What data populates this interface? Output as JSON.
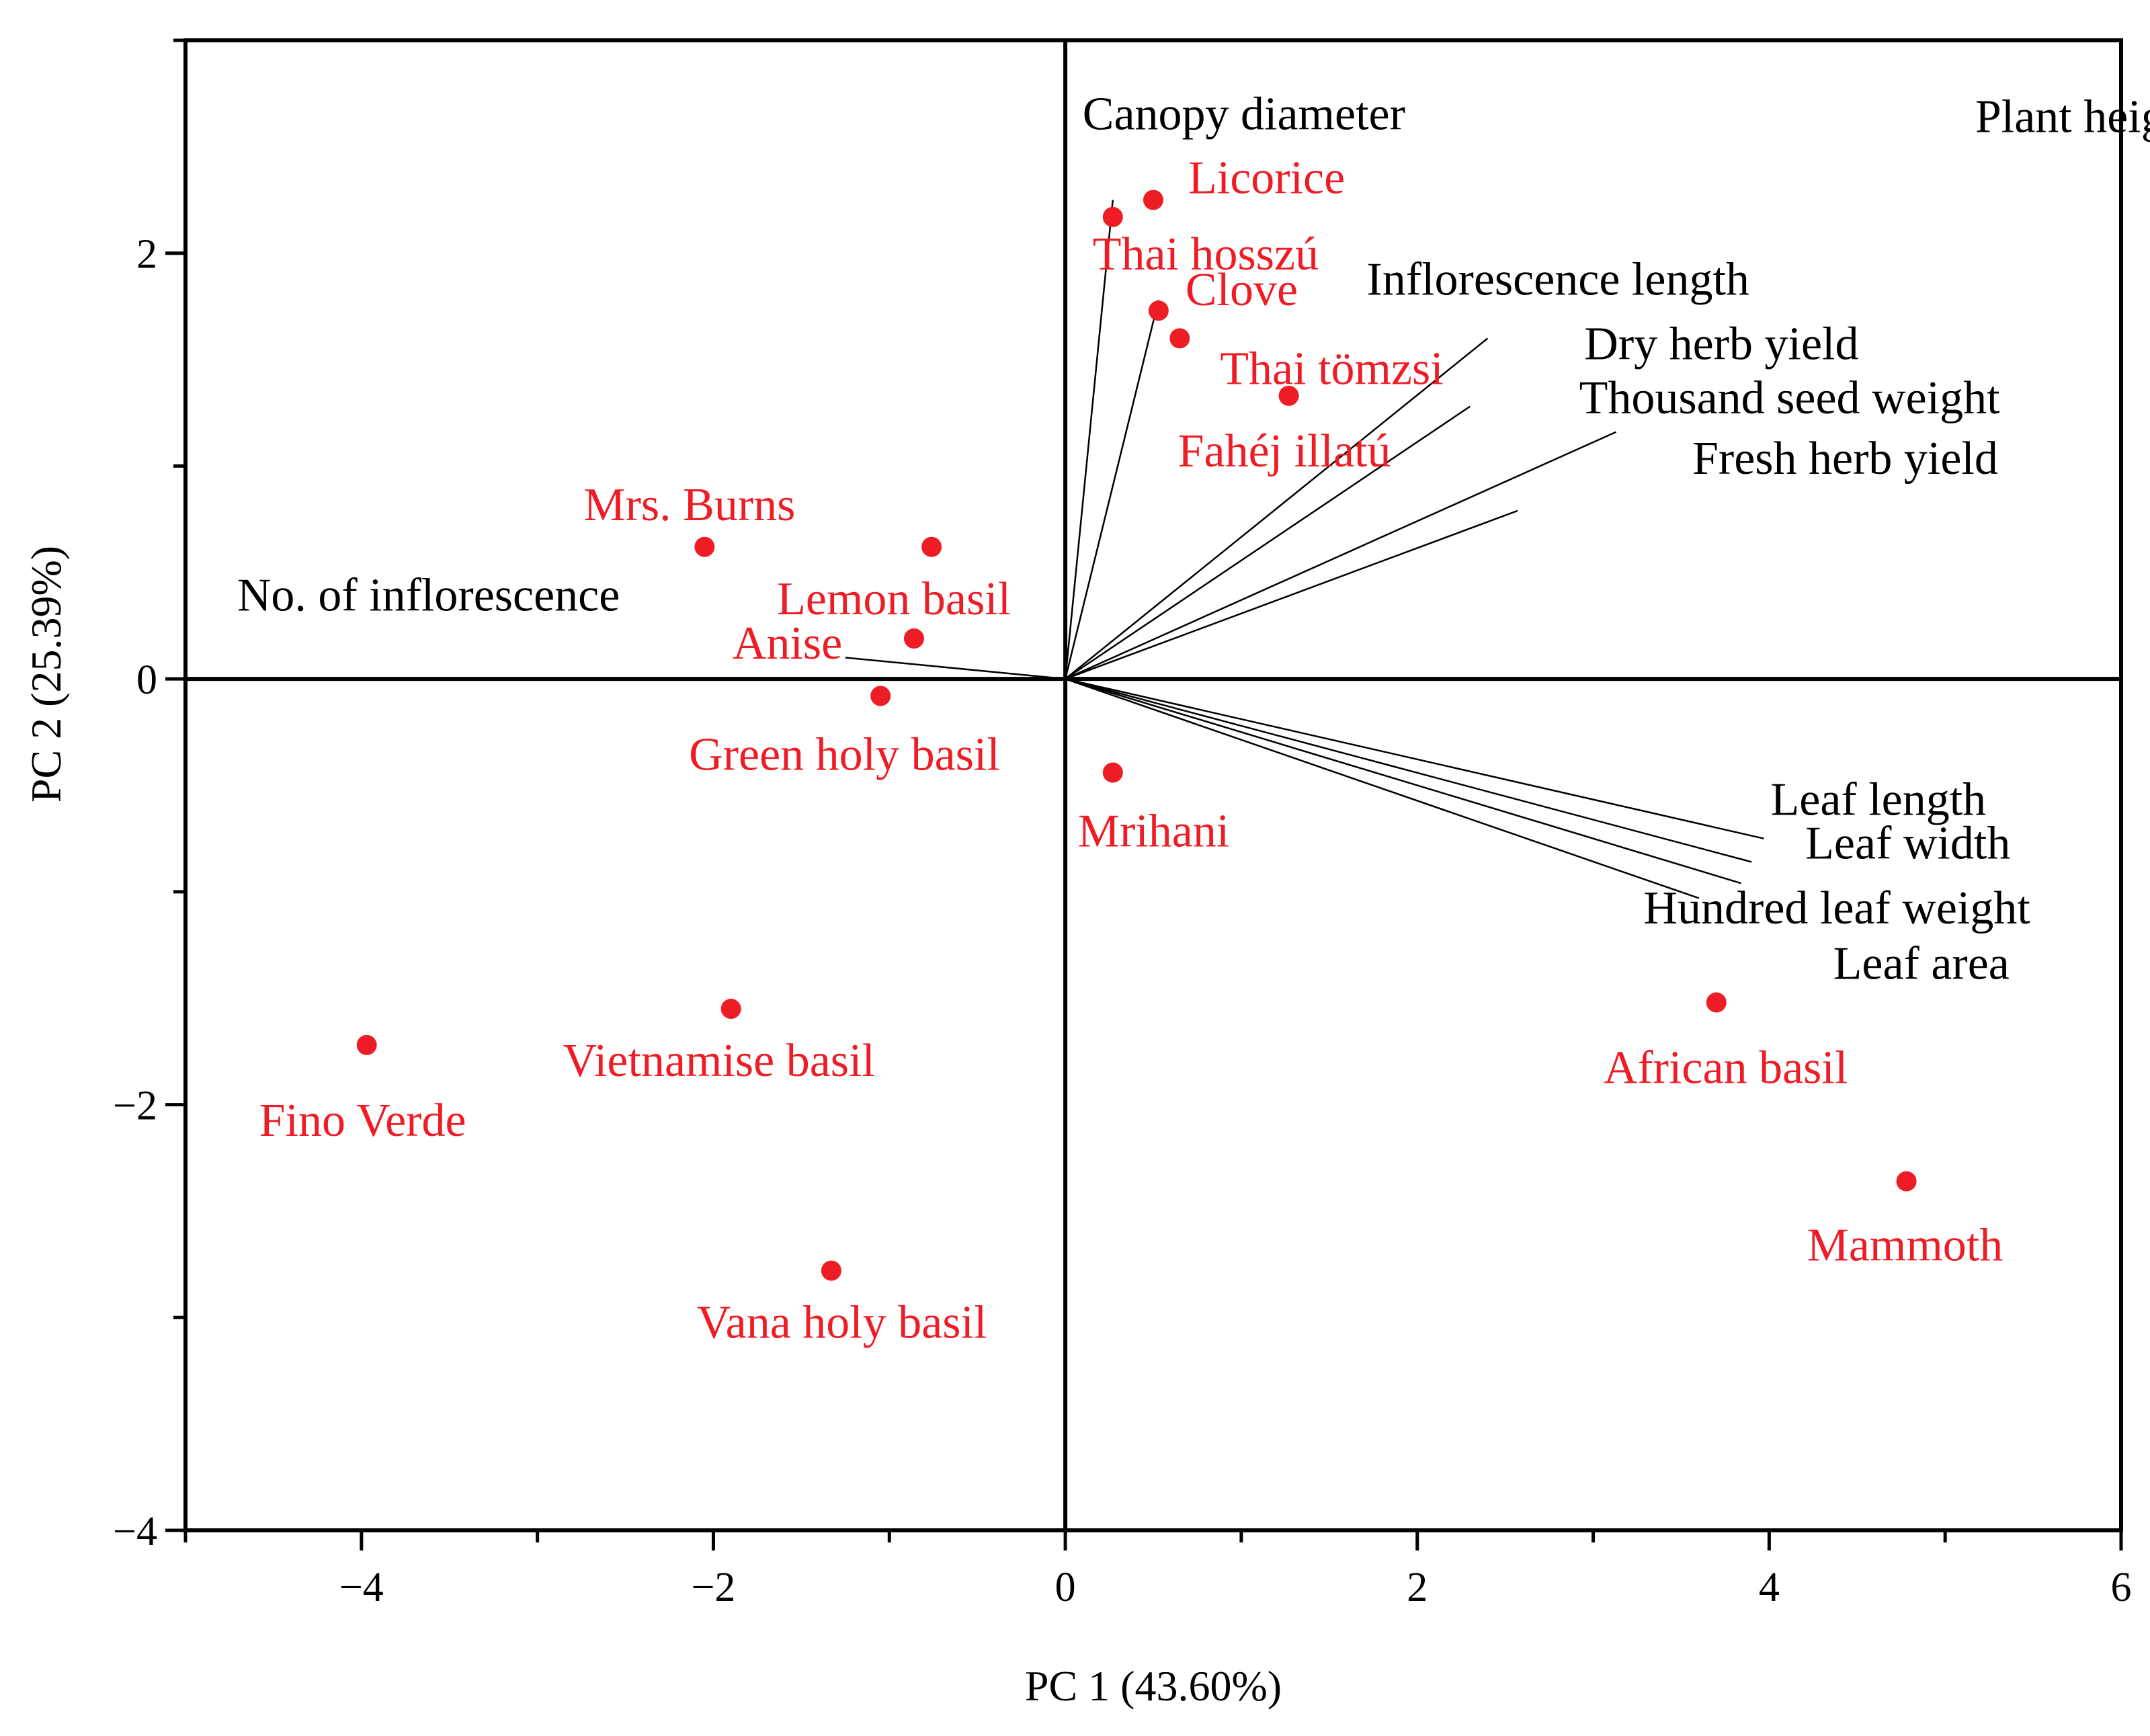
{
  "chart_data": {
    "type": "scatter",
    "subtype": "pca-biplot",
    "xlabel": "PC 1 (43.60%)",
    "ylabel": "PC 2 (25.39%)",
    "xlim": [
      -5,
      6
    ],
    "ylim": [
      -4,
      3
    ],
    "xticks": [
      -4,
      -2,
      0,
      2,
      4,
      6
    ],
    "yticks": [
      -4,
      -2,
      0,
      2
    ],
    "xtick_labels": [
      "−4",
      "−2",
      "0",
      "2",
      "4",
      "6"
    ],
    "ytick_labels": [
      "−4",
      "−2",
      "0",
      "2"
    ],
    "point_color": "#ee1c24",
    "loading_color": "#000000",
    "observations": [
      {
        "name": "Licorice",
        "x": 0.5,
        "y": 2.25
      },
      {
        "name": "Thai hosszú",
        "x": 0.27,
        "y": 2.17
      },
      {
        "name": "Clove",
        "x": 0.53,
        "y": 1.73
      },
      {
        "name": "Thai tömzsi",
        "x": 0.65,
        "y": 1.6
      },
      {
        "name": "Fahéj illatú",
        "x": 1.27,
        "y": 1.33
      },
      {
        "name": "Mrs. Burns",
        "x": -2.05,
        "y": 0.62
      },
      {
        "name": "Lemon basil",
        "x": -0.76,
        "y": 0.62
      },
      {
        "name": "Anise",
        "x": -0.86,
        "y": 0.19
      },
      {
        "name": "Green holy basil",
        "x": -1.05,
        "y": -0.08
      },
      {
        "name": "Mrihani",
        "x": 0.27,
        "y": -0.44
      },
      {
        "name": "Vietnamise basil",
        "x": -1.9,
        "y": -1.55
      },
      {
        "name": "Fino Verde",
        "x": -3.97,
        "y": -1.72
      },
      {
        "name": "Vana holy basil",
        "x": -1.33,
        "y": -2.78
      },
      {
        "name": "African basil",
        "x": 3.7,
        "y": -1.52
      },
      {
        "name": "Mammoth",
        "x": 4.78,
        "y": -2.36
      }
    ],
    "loadings": [
      {
        "name": "Canopy diameter",
        "x": 0.27,
        "y": 2.25
      },
      {
        "name": "Inflorescence length",
        "x": 2.4,
        "y": 1.6
      },
      {
        "name": "Dry herb yield",
        "x": 2.3,
        "y": 1.28
      },
      {
        "name": "Thousand seed weight",
        "x": 3.13,
        "y": 1.16
      },
      {
        "name": "Fresh herb yield",
        "x": 2.57,
        "y": 0.79
      },
      {
        "name": "Plant height",
        "x": 0.53,
        "y": 1.78
      },
      {
        "name": "No. of inflorescence",
        "x": -1.25,
        "y": 0.1
      },
      {
        "name": "Leaf length",
        "x": 3.97,
        "y": -0.75
      },
      {
        "name": "Leaf width",
        "x": 3.9,
        "y": -0.86
      },
      {
        "name": "Hundred leaf weight",
        "x": 3.84,
        "y": -0.96
      },
      {
        "name": "Leaf area",
        "x": 3.6,
        "y": -1.03
      }
    ]
  }
}
